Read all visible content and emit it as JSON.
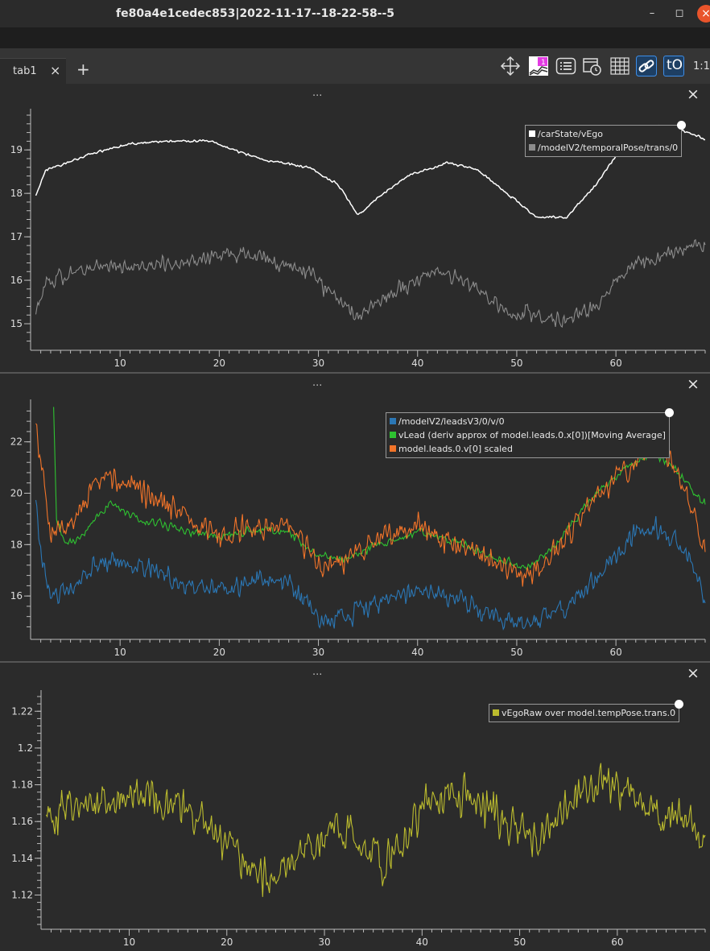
{
  "window": {
    "title": "fe80a4e1cedec853|2022-11-17--18-22-58--5",
    "minimize": "–",
    "maximize": "◻",
    "close": "×"
  },
  "tabs": [
    {
      "label": "tab1",
      "close": "×"
    }
  ],
  "add_tab": "+",
  "toolbar": {
    "icons": [
      "move-arrows-icon",
      "ratio-plot-icon",
      "list-icon",
      "calendar-clock-icon",
      "grid-icon",
      "link-icon",
      "time-origin-icon"
    ],
    "time_origin_label": "tO",
    "zoom_label": "1:1"
  },
  "colors": {
    "white": "#ffffff",
    "gray": "#8c8c8c",
    "blue": "#2b77b5",
    "green": "#2ec231",
    "orange": "#f27429",
    "olive": "#bcbc2e"
  },
  "plots": [
    {
      "menu": "...",
      "close": "×",
      "legend": [
        {
          "label": "/carState/vEgo",
          "color": "#ffffff"
        },
        {
          "label": "/modelV2/temporalPose/trans/0",
          "color": "#8c8c8c"
        }
      ]
    },
    {
      "menu": "...",
      "close": "×",
      "legend": [
        {
          "label": "/modelV2/leadsV3/0/v/0",
          "color": "#2b77b5"
        },
        {
          "label": "vLead (deriv approx of model.leads.0.x[0])[Moving Average]",
          "color": "#2ec231"
        },
        {
          "label": "model.leads.0.v[0] scaled",
          "color": "#f27429"
        }
      ]
    },
    {
      "menu": "...",
      "close": "×",
      "legend": [
        {
          "label": "vEgoRaw over model.tempPose.trans.0",
          "color": "#bcbc2e"
        }
      ]
    }
  ],
  "chart_data": [
    {
      "type": "line",
      "title": "",
      "xlabel": "",
      "ylabel": "",
      "xlim": [
        1.3,
        69
      ],
      "ylim": [
        14.5,
        19.8
      ],
      "xticks": [
        10,
        20,
        30,
        40,
        50,
        60
      ],
      "yticks": [
        15,
        16,
        17,
        18,
        19
      ],
      "legend_position": "top-right",
      "series": [
        {
          "name": "/carState/vEgo",
          "color": "#ffffff",
          "noise": 0.03,
          "x": [
            1.5,
            2.5,
            4,
            7,
            11,
            15,
            19,
            22,
            25,
            29,
            32,
            34,
            36,
            39,
            43,
            46,
            49,
            52,
            55,
            58,
            61,
            64,
            66,
            69
          ],
          "y": [
            17.95,
            18.55,
            18.65,
            18.9,
            19.15,
            19.2,
            19.2,
            18.95,
            18.75,
            18.6,
            18.2,
            17.5,
            17.9,
            18.4,
            18.7,
            18.55,
            18.0,
            17.45,
            17.45,
            18.2,
            19.2,
            19.55,
            19.5,
            19.25
          ]
        },
        {
          "name": "/modelV2/temporalPose/trans/0",
          "color": "#8c8c8c",
          "noise": 0.2,
          "x": [
            1.5,
            2.5,
            4,
            8,
            12,
            16,
            20,
            23,
            26,
            29,
            32,
            34,
            36,
            40,
            42,
            45,
            49,
            52,
            55,
            58,
            61,
            64,
            66,
            69
          ],
          "y": [
            15.3,
            15.9,
            16.1,
            16.3,
            16.3,
            16.4,
            16.6,
            16.6,
            16.4,
            16.2,
            15.6,
            15.1,
            15.5,
            16.0,
            16.2,
            16.0,
            15.3,
            15.2,
            15.0,
            15.4,
            16.3,
            16.5,
            16.7,
            16.8
          ]
        }
      ]
    },
    {
      "type": "line",
      "title": "",
      "xlabel": "",
      "ylabel": "",
      "xlim": [
        1.3,
        69
      ],
      "ylim": [
        14.5,
        23.4
      ],
      "xticks": [
        10,
        20,
        30,
        40,
        50,
        60
      ],
      "yticks": [
        16,
        18,
        20,
        22
      ],
      "legend_position": "top-right",
      "series": [
        {
          "name": "/modelV2/leadsV3/0/v/0",
          "color": "#2b77b5",
          "noise": 0.45,
          "x": [
            1.5,
            2,
            3,
            5,
            8,
            12,
            16,
            20,
            24,
            27,
            30,
            33,
            36,
            40,
            44,
            48,
            51,
            54,
            58,
            61,
            64,
            66,
            68,
            69
          ],
          "y": [
            19.8,
            17.8,
            15.8,
            16.3,
            17.3,
            17.2,
            16.6,
            16.2,
            16.6,
            16.5,
            15.1,
            15.3,
            15.7,
            16.2,
            15.9,
            15.1,
            14.9,
            15.3,
            16.7,
            18.2,
            18.6,
            18.1,
            17.2,
            15.6
          ]
        },
        {
          "name": "vLead (deriv approx of model.leads.0.x[0])[Moving Average]",
          "color": "#2ec231",
          "noise": 0.18,
          "x": [
            3.3,
            3.6,
            4.5,
            6,
            9,
            12,
            16,
            20,
            24,
            27,
            30,
            33,
            36,
            40,
            44,
            48,
            51,
            54,
            58,
            61,
            64,
            66,
            68,
            69
          ],
          "y": [
            23.4,
            19.0,
            18.0,
            18.3,
            19.6,
            19.0,
            18.6,
            18.3,
            18.6,
            18.5,
            17.6,
            17.4,
            18.0,
            18.5,
            18.1,
            17.4,
            17.1,
            18.0,
            20.0,
            21.0,
            21.6,
            20.9,
            20.0,
            19.6
          ]
        },
        {
          "name": "model.leads.0.v[0] scaled",
          "color": "#f27429",
          "noise": 0.55,
          "x": [
            1.5,
            2,
            3,
            5,
            8,
            12,
            16,
            20,
            24,
            27,
            30,
            33,
            36,
            40,
            44,
            48,
            51,
            54,
            58,
            61,
            64,
            66,
            67.5,
            69
          ],
          "y": [
            22.6,
            21.0,
            18.5,
            18.8,
            20.6,
            20.2,
            19.2,
            18.3,
            18.7,
            18.9,
            17.1,
            17.4,
            18.4,
            18.6,
            18.0,
            17.3,
            16.8,
            17.8,
            19.9,
            20.9,
            22.0,
            20.9,
            19.3,
            17.8
          ]
        }
      ]
    },
    {
      "type": "line",
      "title": "",
      "xlabel": "",
      "ylabel": "",
      "xlim": [
        1.3,
        69
      ],
      "ylim": [
        1.104,
        1.228
      ],
      "xticks": [
        10,
        20,
        30,
        40,
        50,
        60
      ],
      "yticks": [
        1.12,
        1.14,
        1.16,
        1.18,
        1.2,
        1.22
      ],
      "ytick_labels": [
        "1.12",
        "1.14",
        "1.16",
        "1.18",
        "1.2",
        "1.22"
      ],
      "legend_position": "top-right",
      "series": [
        {
          "name": "vEgoRaw over model.tempPose.trans.0",
          "color": "#bcbc2e",
          "noise": 0.012,
          "x": [
            1.5,
            4,
            8,
            12,
            16,
            19,
            21,
            23,
            25,
            28,
            31,
            33,
            36,
            38,
            40,
            43,
            46,
            50,
            52,
            55,
            58,
            61,
            64,
            67,
            69
          ],
          "y": [
            1.165,
            1.168,
            1.172,
            1.174,
            1.165,
            1.155,
            1.145,
            1.135,
            1.13,
            1.143,
            1.158,
            1.152,
            1.135,
            1.15,
            1.17,
            1.178,
            1.17,
            1.155,
            1.148,
            1.17,
            1.185,
            1.175,
            1.165,
            1.163,
            1.15
          ]
        }
      ]
    }
  ]
}
